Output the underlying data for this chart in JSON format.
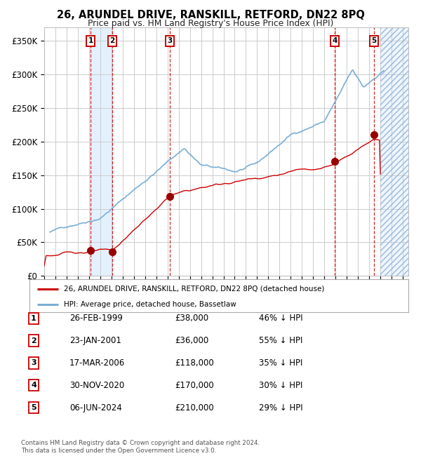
{
  "title": "26, ARUNDEL DRIVE, RANSKILL, RETFORD, DN22 8PQ",
  "subtitle": "Price paid vs. HM Land Registry's House Price Index (HPI)",
  "xlim_left": 1995.0,
  "xlim_right": 2027.5,
  "ylim_bottom": 0,
  "ylim_top": 370000,
  "yticks": [
    0,
    50000,
    100000,
    150000,
    200000,
    250000,
    300000,
    350000
  ],
  "ytick_labels": [
    "£0",
    "£50K",
    "£100K",
    "£150K",
    "£200K",
    "£250K",
    "£300K",
    "£350K"
  ],
  "hpi_color": "#7aaed6",
  "price_color": "#cc0000",
  "sale_marker_color": "#990000",
  "vline_color": "#cc0000",
  "bg_fill_color": "#ddeeff",
  "grid_color": "#cccccc",
  "sales": [
    {
      "num": 1,
      "date_str": "26-FEB-1999",
      "year": 1999.15,
      "price": 38000,
      "hpi_pct": "46%",
      "direction": "↓"
    },
    {
      "num": 2,
      "date_str": "23-JAN-2001",
      "year": 2001.06,
      "price": 36000,
      "hpi_pct": "55%",
      "direction": "↓"
    },
    {
      "num": 3,
      "date_str": "17-MAR-2006",
      "year": 2006.21,
      "price": 118000,
      "hpi_pct": "35%",
      "direction": "↓"
    },
    {
      "num": 4,
      "date_str": "30-NOV-2020",
      "year": 2020.92,
      "price": 170000,
      "hpi_pct": "30%",
      "direction": "↓"
    },
    {
      "num": 5,
      "date_str": "06-JUN-2024",
      "year": 2024.43,
      "price": 210000,
      "hpi_pct": "29%",
      "direction": "↓"
    }
  ],
  "legend_label_price": "26, ARUNDEL DRIVE, RANSKILL, RETFORD, DN22 8PQ (detached house)",
  "legend_label_hpi": "HPI: Average price, detached house, Bassetlaw",
  "footer_text": "Contains HM Land Registry data © Crown copyright and database right 2024.\nThis data is licensed under the Open Government Licence v3.0.",
  "future_year": 2025.0
}
